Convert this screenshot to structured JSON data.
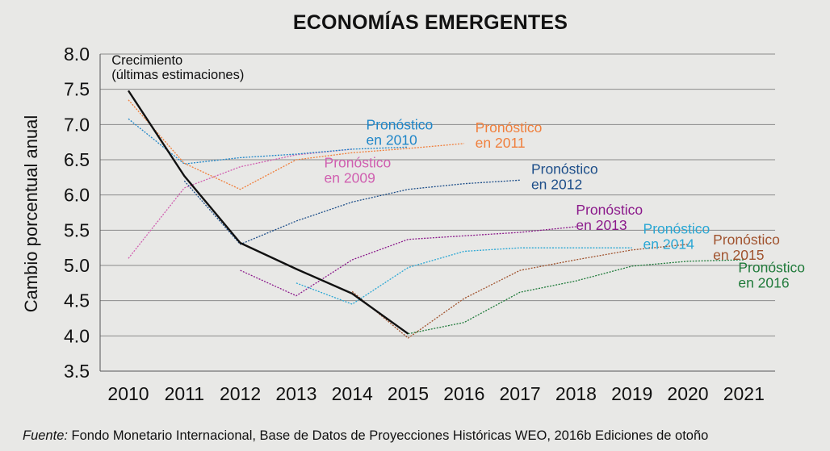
{
  "chart_data": {
    "type": "line",
    "title": "ECONOMÍAS EMERGENTES",
    "ylabel": "Cambio porcentual anual",
    "xlabel": "",
    "ylim": [
      3.5,
      8.0
    ],
    "yticks": [
      "3.5",
      "4.0",
      "4.5",
      "5.0",
      "5.5",
      "6.0",
      "6.5",
      "7.0",
      "7.5",
      "8.0"
    ],
    "categories": [
      "2010",
      "2011",
      "2012",
      "2013",
      "2014",
      "2015",
      "2016",
      "2017",
      "2018",
      "2019",
      "2020",
      "2021"
    ],
    "grid": "horizontal",
    "series": [
      {
        "name": "Crecimiento (últimas estimaciones)",
        "label": [
          "Crecimiento",
          "(últimas estimaciones)"
        ],
        "color": "#111111",
        "style": "solid",
        "x": [
          2010,
          2011,
          2012,
          2013,
          2014,
          2015
        ],
        "values": [
          7.48,
          6.27,
          5.32,
          4.95,
          4.6,
          4.03
        ]
      },
      {
        "name": "Pronóstico en 2009",
        "label": [
          "Pronóstico",
          "en 2009"
        ],
        "color": "#d05fb0",
        "style": "dotted",
        "x": [
          2010,
          2011,
          2012,
          2013,
          2014
        ],
        "values": [
          5.1,
          6.1,
          6.4,
          6.57,
          6.65
        ]
      },
      {
        "name": "Pronóstico en 2010",
        "label": [
          "Pronóstico",
          "en 2010"
        ],
        "color": "#1f86c8",
        "style": "dotted",
        "x": [
          2010,
          2011,
          2012,
          2013,
          2014,
          2015
        ],
        "values": [
          7.08,
          6.44,
          6.53,
          6.58,
          6.65,
          6.68
        ]
      },
      {
        "name": "Pronóstico en 2011",
        "label": [
          "Pronóstico",
          "en 2011"
        ],
        "color": "#f07f3c",
        "style": "dotted",
        "x": [
          2010,
          2011,
          2012,
          2013,
          2014,
          2015,
          2016
        ],
        "values": [
          7.35,
          6.45,
          6.08,
          6.5,
          6.6,
          6.66,
          6.73
        ]
      },
      {
        "name": "Pronóstico en 2012",
        "label": [
          "Pronóstico",
          "en 2012"
        ],
        "color": "#1d4e89",
        "style": "dotted",
        "x": [
          2011,
          2012,
          2013,
          2014,
          2015,
          2016,
          2017
        ],
        "values": [
          6.2,
          5.3,
          5.63,
          5.9,
          6.08,
          6.16,
          6.21
        ]
      },
      {
        "name": "Pronóstico en 2013",
        "label": [
          "Pronóstico",
          "en 2013"
        ],
        "color": "#8b1a8b",
        "style": "dotted",
        "x": [
          2012,
          2013,
          2014,
          2015,
          2016,
          2017,
          2018
        ],
        "values": [
          4.93,
          4.57,
          5.08,
          5.37,
          5.42,
          5.47,
          5.55
        ]
      },
      {
        "name": "Pronóstico en 2014",
        "label": [
          "Pronóstico",
          "en 2014"
        ],
        "color": "#2aa7d4",
        "style": "dotted",
        "x": [
          2013,
          2014,
          2015,
          2016,
          2017,
          2018,
          2019
        ],
        "values": [
          4.75,
          4.45,
          4.97,
          5.2,
          5.25,
          5.25,
          5.25
        ]
      },
      {
        "name": "Pronóstico en 2015",
        "label": [
          "Pronóstico",
          "en 2015"
        ],
        "color": "#a0522d",
        "style": "dotted",
        "x": [
          2014,
          2015,
          2016,
          2017,
          2018,
          2019,
          2020
        ],
        "values": [
          4.63,
          3.97,
          4.53,
          4.93,
          5.08,
          5.22,
          5.3
        ]
      },
      {
        "name": "Pronóstico en 2016",
        "label": [
          "Pronóstico",
          "en 2016"
        ],
        "color": "#1f7a3a",
        "style": "dotted",
        "x": [
          2015,
          2016,
          2017,
          2018,
          2019,
          2020,
          2021
        ],
        "values": [
          4.03,
          4.19,
          4.62,
          4.78,
          4.99,
          5.06,
          5.08
        ]
      }
    ]
  },
  "source": {
    "prefix": "Fuente:",
    "text": " Fondo Monetario Internacional, Base de Datos de Proyecciones Históricas WEO, 2016b Ediciones de otoño"
  }
}
